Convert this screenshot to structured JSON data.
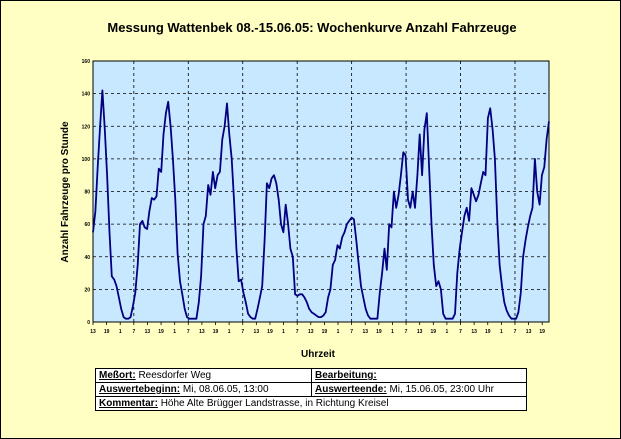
{
  "chart_data": {
    "type": "line",
    "title": "Messung Wattenbek 08.-15.06.05: Wochenkurve Anzahl Fahrzeuge",
    "xlabel": "Uhrzeit",
    "ylabel": "Anzahl Fahrzeuge pro Stunde",
    "ylim": [
      0,
      160
    ],
    "yticks": [
      0,
      20,
      40,
      60,
      80,
      100,
      120,
      140,
      160
    ],
    "x_tick_labels": [
      "13",
      "19",
      "1",
      "7",
      "13",
      "19",
      "1",
      "7",
      "13",
      "19",
      "1",
      "7",
      "13",
      "19",
      "1",
      "7",
      "13",
      "19",
      "1",
      "7",
      "13",
      "19",
      "1",
      "7",
      "13",
      "19",
      "1",
      "7",
      "13",
      "19",
      "1",
      "7",
      "13",
      "19"
    ],
    "grid": true,
    "line_color": "#000080",
    "plot_background": "#c8e8ff",
    "series": [
      {
        "values": [
          55,
          68,
          95,
          120,
          142,
          118,
          90,
          55,
          28,
          26,
          22,
          15,
          8,
          3,
          2,
          2,
          3,
          10,
          18,
          35,
          60,
          62,
          58,
          57,
          68,
          76,
          75,
          77,
          94,
          92,
          115,
          128,
          135,
          120,
          100,
          75,
          42,
          25,
          17,
          8,
          3,
          2,
          2,
          2,
          2,
          12,
          28,
          60,
          65,
          84,
          78,
          92,
          82,
          90,
          92,
          112,
          120,
          134,
          115,
          100,
          75,
          45,
          25,
          26,
          18,
          12,
          5,
          3,
          2,
          2,
          8,
          15,
          22,
          50,
          85,
          82,
          88,
          90,
          85,
          75,
          60,
          55,
          72,
          60,
          45,
          40,
          17,
          16,
          17,
          17,
          15,
          12,
          8,
          6,
          5,
          4,
          3,
          3,
          4,
          6,
          15,
          20,
          35,
          38,
          47,
          45,
          52,
          55,
          60,
          62,
          64,
          63,
          50,
          36,
          22,
          15,
          8,
          4,
          2,
          2,
          2,
          2,
          18,
          30,
          45,
          32,
          60,
          58,
          80,
          70,
          78,
          90,
          104,
          102,
          75,
          70,
          80,
          70,
          90,
          115,
          90,
          118,
          128,
          95,
          60,
          35,
          22,
          25,
          20,
          5,
          2,
          2,
          2,
          2,
          5,
          30,
          45,
          55,
          65,
          70,
          62,
          82,
          78,
          74,
          78,
          85,
          92,
          90,
          125,
          131,
          118,
          100,
          62,
          35,
          22,
          12,
          7,
          4,
          2,
          2,
          2,
          6,
          18,
          40,
          50,
          58,
          65,
          70,
          100,
          80,
          72,
          90,
          95,
          112,
          123
        ]
      }
    ]
  },
  "info": {
    "messort_label": "Meßort:",
    "messort_value": "Reesdorfer Weg",
    "bearbeitung_label": "Bearbeitung:",
    "bearbeitung_value": "",
    "beginn_label": "Auswertebeginn:",
    "beginn_value": "Mi, 08.06.05, 13:00",
    "ende_label": "Auswerteende:",
    "ende_value": "Mi, 15.06.05, 23:00 Uhr",
    "kommentar_label": "Kommentar:",
    "kommentar_value": "Höhe Alte Brügger Landstrasse, in Richtung Kreisel"
  }
}
